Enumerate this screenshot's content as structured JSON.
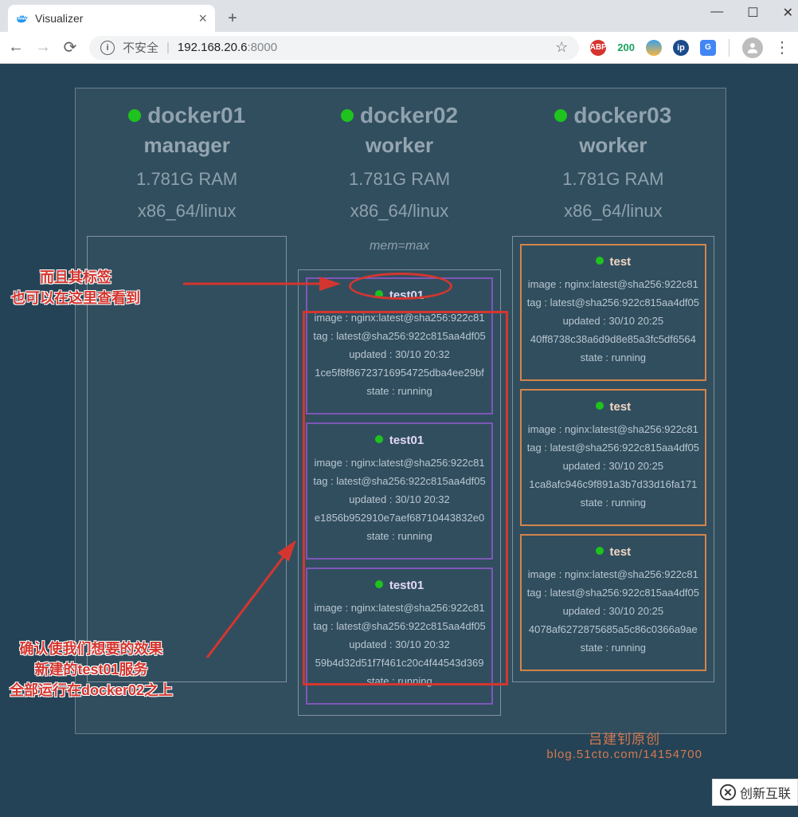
{
  "tab": {
    "title": "Visualizer"
  },
  "url": {
    "unsafe": "不安全",
    "ip": "192.168.20.6",
    "port": ":8000"
  },
  "ext_badge": "200",
  "nodes": [
    {
      "name": "docker01",
      "role": "manager",
      "ram": "1.781G RAM",
      "arch": "x86_64/linux",
      "label": ""
    },
    {
      "name": "docker02",
      "role": "worker",
      "ram": "1.781G RAM",
      "arch": "x86_64/linux",
      "label": "mem=max"
    },
    {
      "name": "docker03",
      "role": "worker",
      "ram": "1.781G RAM",
      "arch": "x86_64/linux",
      "label": ""
    }
  ],
  "tasks": {
    "docker02": [
      {
        "name": "test01",
        "color": "purple",
        "image": "image : nginx:latest@sha256:922c81",
        "tag": "tag : latest@sha256:922c815aa4df05",
        "updated": "updated : 30/10 20:32",
        "id": "1ce5f8f86723716954725dba4ee29bf",
        "state": "state : running"
      },
      {
        "name": "test01",
        "color": "purple",
        "image": "image : nginx:latest@sha256:922c81",
        "tag": "tag : latest@sha256:922c815aa4df05",
        "updated": "updated : 30/10 20:32",
        "id": "e1856b952910e7aef68710443832e0",
        "state": "state : running"
      },
      {
        "name": "test01",
        "color": "purple",
        "image": "image : nginx:latest@sha256:922c81",
        "tag": "tag : latest@sha256:922c815aa4df05",
        "updated": "updated : 30/10 20:32",
        "id": "59b4d32d51f7f461c20c4f44543d369",
        "state": "state : running"
      }
    ],
    "docker03": [
      {
        "name": "test",
        "color": "orange",
        "image": "image : nginx:latest@sha256:922c81",
        "tag": "tag : latest@sha256:922c815aa4df05",
        "updated": "updated : 30/10 20:25",
        "id": "40ff8738c38a6d9d8e85a3fc5df6564",
        "state": "state : running"
      },
      {
        "name": "test",
        "color": "orange",
        "image": "image : nginx:latest@sha256:922c81",
        "tag": "tag : latest@sha256:922c815aa4df05",
        "updated": "updated : 30/10 20:25",
        "id": "1ca8afc946c9f891a3b7d33d16fa171",
        "state": "state : running"
      },
      {
        "name": "test",
        "color": "orange",
        "image": "image : nginx:latest@sha256:922c81",
        "tag": "tag : latest@sha256:922c815aa4df05",
        "updated": "updated : 30/10 20:25",
        "id": "4078af6272875685a5c86c0366a9ae",
        "state": "state : running"
      }
    ]
  },
  "anno": {
    "top1": "而且其标签",
    "top2": "也可以在这里查看到",
    "bot1": "确认使我们想要的效果",
    "bot2": "新建的test01服务",
    "bot3": "全部运行在docker02之上"
  },
  "watermark": {
    "name": "吕建钊原创",
    "url": "blog.51cto.com/14154700",
    "brand": "创新互联"
  }
}
